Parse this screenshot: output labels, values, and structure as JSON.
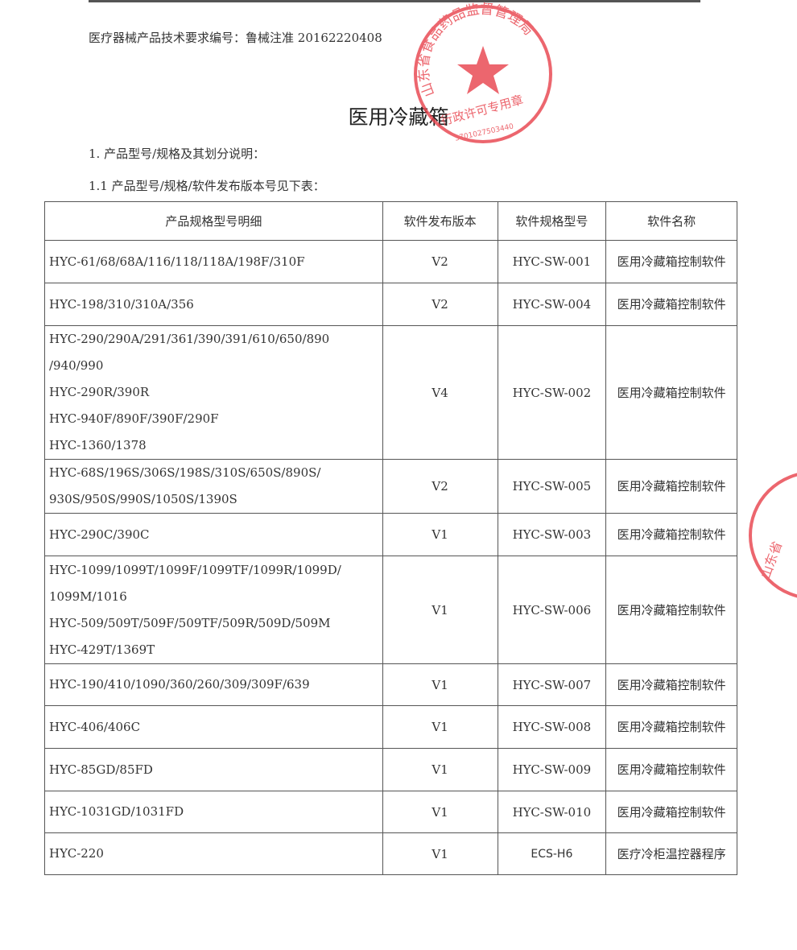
{
  "header": {
    "registration": "医疗器械产品技术要求编号：鲁械注准 20162220408"
  },
  "title": "医用冷藏箱",
  "section1": "1. 产品型号/规格及其划分说明：",
  "section1_1": "1.1 产品型号/规格/软件发布版本号见下表：",
  "table": {
    "headers": [
      "产品规格型号明细",
      "软件发布版本",
      "软件规格型号",
      "软件名称"
    ],
    "rows": [
      {
        "models": [
          "HYC-61/68/68A/116/118/118A/198F/310F"
        ],
        "version": "V2",
        "sw_model": "HYC-SW-001",
        "sw_name": "医用冷藏箱控制软件"
      },
      {
        "models": [
          "HYC-198/310/310A/356"
        ],
        "version": "V2",
        "sw_model": "HYC-SW-004",
        "sw_name": "医用冷藏箱控制软件"
      },
      {
        "models": [
          "HYC-290/290A/291/361/390/391/610/650/890",
          "/940/990",
          "HYC-290R/390R",
          "HYC-940F/890F/390F/290F",
          "HYC-1360/1378"
        ],
        "version": "V4",
        "sw_model": "HYC-SW-002",
        "sw_name": "医用冷藏箱控制软件"
      },
      {
        "models": [
          "HYC-68S/196S/306S/198S/310S/650S/890S/",
          "930S/950S/990S/1050S/1390S"
        ],
        "version": "V2",
        "sw_model": "HYC-SW-005",
        "sw_name": "医用冷藏箱控制软件"
      },
      {
        "models": [
          "HYC-290C/390C"
        ],
        "version": "V1",
        "sw_model": "HYC-SW-003",
        "sw_name": "医用冷藏箱控制软件"
      },
      {
        "models": [
          "HYC-1099/1099T/1099F/1099TF/1099R/1099D/",
          "1099M/1016",
          "HYC-509/509T/509F/509TF/509R/509D/509M",
          "HYC-429T/1369T"
        ],
        "version": "V1",
        "sw_model": "HYC-SW-006",
        "sw_name": "医用冷藏箱控制软件"
      },
      {
        "models": [
          "HYC-190/410/1090/360/260/309/309F/639"
        ],
        "version": "V1",
        "sw_model": "HYC-SW-007",
        "sw_name": "医用冷藏箱控制软件"
      },
      {
        "models": [
          "HYC-406/406C"
        ],
        "version": "V1",
        "sw_model": "HYC-SW-008",
        "sw_name": "医用冷藏箱控制软件"
      },
      {
        "models": [
          "HYC-85GD/85FD"
        ],
        "version": "V1",
        "sw_model": "HYC-SW-009",
        "sw_name": "医用冷藏箱控制软件"
      },
      {
        "models": [
          "HYC-1031GD/1031FD"
        ],
        "version": "V1",
        "sw_model": "HYC-SW-010",
        "sw_name": "医用冷藏箱控制软件"
      },
      {
        "models": [
          "HYC-220"
        ],
        "version": "V1",
        "sw_model": "ECS-H6",
        "sw_name": "医疗冷柜温控器程序"
      }
    ]
  },
  "stamp": {
    "text": "山东省食品药品监督管理局",
    "subtext": "行政许可专用章",
    "number": "3701027503440",
    "color": "#e8404a"
  },
  "stamp2": {
    "text": "山东省",
    "color": "#e8404a"
  }
}
